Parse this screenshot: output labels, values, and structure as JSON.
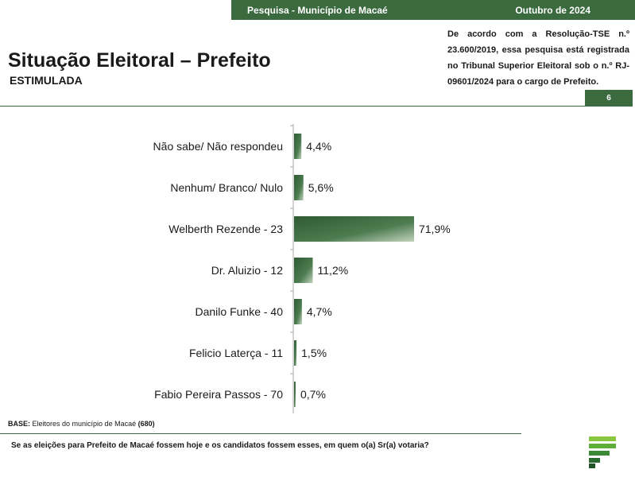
{
  "header": {
    "survey": "Pesquisa - Município de Macaé",
    "date": "Outubro de 2024"
  },
  "title": "Situação Eleitoral – Prefeito",
  "subtitle": "ESTIMULADA",
  "registration": "De acordo com a Resolução-TSE n.º 23.600/2019, essa pesquisa está registrada no Tribunal Superior Eleitoral sob o n.º RJ-09601/2024 para o cargo de Prefeito.",
  "page_number": "6",
  "base": {
    "label": "BASE:",
    "text": " Eleitores do município de Macaé ",
    "count": "(680)"
  },
  "question": "Se as eleições para Prefeito de Macaé fossem hoje e os candidatos fossem esses, em quem o(a) Sr(a) votaria?",
  "colors": {
    "accent": "#3a6a3e",
    "bar_dark": "#2f5a33",
    "bar_light": "#c2d3bd"
  },
  "chart_data": {
    "type": "bar",
    "orientation": "horizontal",
    "categories": [
      "Não sabe/ Não respondeu",
      "Nenhum/ Branco/ Nulo",
      "Welberth Rezende - 23",
      "Dr. Aluizio - 12",
      "Danilo Funke - 40",
      "Felicio Laterça - 11",
      "Fabio Pereira Passos - 70"
    ],
    "values": [
      4.4,
      5.6,
      71.9,
      11.2,
      4.7,
      1.5,
      0.7
    ],
    "labels": [
      "4,4%",
      "5,6%",
      "71,9%",
      "11,2%",
      "4,7%",
      "1,5%",
      "0,7%"
    ],
    "xlim": [
      0,
      100
    ]
  }
}
